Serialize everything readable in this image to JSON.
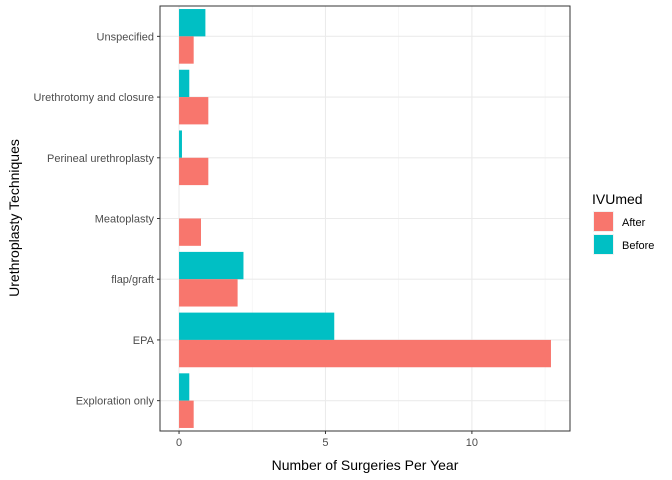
{
  "chart_data": {
    "type": "bar",
    "orientation": "horizontal",
    "categories": [
      "Unspecified",
      "Urethrotomy and closure",
      "Perineal urethroplasty",
      "Meatoplasty",
      "flap/graft",
      "EPA",
      "Exploration only"
    ],
    "series": [
      {
        "name": "After",
        "color": "#F8766D",
        "values": [
          0.5,
          1.0,
          1.0,
          0.75,
          2.0,
          12.7,
          0.5
        ]
      },
      {
        "name": "Before",
        "color": "#00BFC4",
        "values": [
          0.9,
          0.35,
          0.1,
          0.0,
          2.2,
          5.3,
          0.35
        ]
      }
    ],
    "xlabel": "Number of Surgeries Per Year",
    "ylabel": "Urethroplasty Techniques",
    "xlim": [
      -0.65,
      13.35
    ],
    "x_ticks": [
      0,
      5,
      10
    ],
    "x_tick_labels": [
      "0",
      "5",
      "10"
    ],
    "grid": true,
    "legend": {
      "title": "IVUmed",
      "position": "right"
    }
  }
}
